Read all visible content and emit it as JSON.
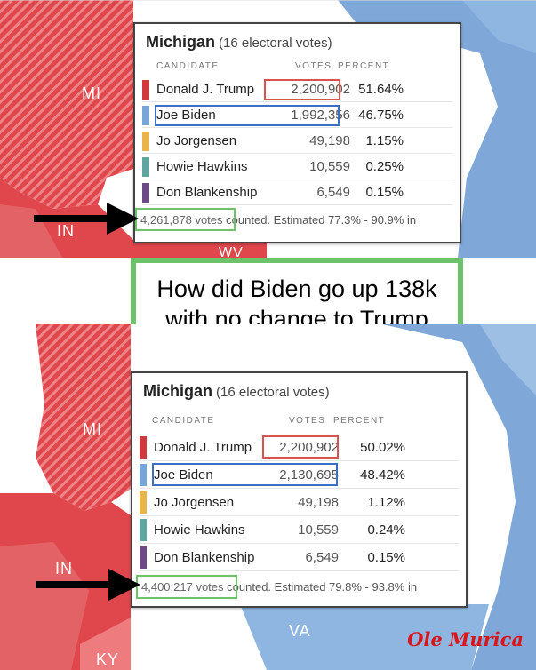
{
  "colors": {
    "map_red": "#e0474c",
    "map_red_light": "#ee7b7e",
    "map_blue": "#7fa8d8",
    "trump": "#cf3a3f",
    "biden": "#77a7d8",
    "jorgensen": "#e9b54a",
    "hawkins": "#5ea6a0",
    "blankenship": "#6b4a85",
    "highlight_green": "#6cc36a"
  },
  "top": {
    "map_labels": {
      "mi": "MI",
      "in": "IN",
      "wv": "WV"
    },
    "card": {
      "state": "Michigan",
      "electoral": "(16 electoral votes)",
      "col_candidate": "CANDIDATE",
      "col_votes": "VOTES",
      "col_percent": "PERCENT",
      "rows": [
        {
          "name": "Donald J. Trump",
          "votes": "2,200,902",
          "pct": "51.64%"
        },
        {
          "name": "Joe Biden",
          "votes": "1,992,356",
          "pct": "46.75%"
        },
        {
          "name": "Jo Jorgensen",
          "votes": "49,198",
          "pct": "1.15%"
        },
        {
          "name": "Howie Hawkins",
          "votes": "10,559",
          "pct": "0.25%"
        },
        {
          "name": "Don Blankenship",
          "votes": "6,549",
          "pct": "0.15%"
        }
      ],
      "total": "4,261,878 votes",
      "counted": "counted. Estimated 77.3% - 90.9% in"
    }
  },
  "question": {
    "line1": "How did Biden go up 138k",
    "line2": "with no change to Trump"
  },
  "bottom": {
    "map_labels": {
      "mi": "MI",
      "in": "IN",
      "va": "VA",
      "ky": "KY"
    },
    "card": {
      "state": "Michigan",
      "electoral": "(16 electoral votes)",
      "col_candidate": "CANDIDATE",
      "col_votes": "VOTES",
      "col_percent": "PERCENT",
      "rows": [
        {
          "name": "Donald J. Trump",
          "votes": "2,200,902",
          "pct": "50.02%"
        },
        {
          "name": "Joe Biden",
          "votes": "2,130,695",
          "pct": "48.42%"
        },
        {
          "name": "Jo Jorgensen",
          "votes": "49,198",
          "pct": "1.12%"
        },
        {
          "name": "Howie Hawkins",
          "votes": "10,559",
          "pct": "0.24%"
        },
        {
          "name": "Don Blankenship",
          "votes": "6,549",
          "pct": "0.15%"
        }
      ],
      "total": "4,400,217 votes",
      "counted": "counted. Estimated 79.8% - 93.8% in"
    }
  },
  "watermark": "Ole Murica"
}
